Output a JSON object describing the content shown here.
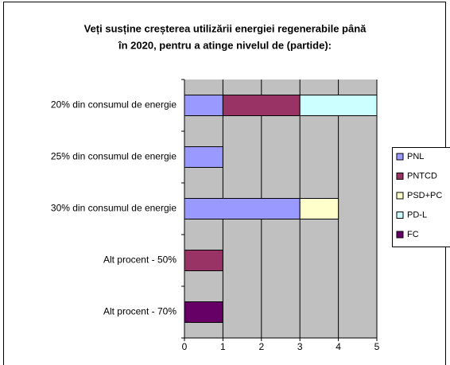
{
  "chart_data": {
    "type": "stacked_bar_horizontal",
    "title": [
      "Veți susține creșterea utilizării energiei regenerabile până",
      "în 2020, pentru a atinge nivelul de (partide):"
    ],
    "categories": [
      "20% din consumul de energie",
      "25% din consumul de energie",
      "30% din consumul de energie",
      "Alt procent - 50%",
      "Alt procent - 70%"
    ],
    "series": [
      {
        "name": "PNL",
        "color": "#9999ff",
        "values": [
          1,
          1,
          3,
          0,
          0
        ]
      },
      {
        "name": "PNTCD",
        "color": "#993366",
        "values": [
          2,
          0,
          0,
          1,
          0
        ]
      },
      {
        "name": "PSD+PC",
        "color": "#ffffcc",
        "values": [
          0,
          0,
          1,
          0,
          0
        ]
      },
      {
        "name": "PD-L",
        "color": "#ccffff",
        "values": [
          2,
          0,
          0,
          0,
          0
        ]
      },
      {
        "name": "FC",
        "color": "#660066",
        "values": [
          0,
          0,
          0,
          0,
          1
        ]
      }
    ],
    "xlim": [
      0,
      5
    ],
    "xticks": [
      0,
      1,
      2,
      3,
      4,
      5
    ],
    "grid": true,
    "legend": "right"
  }
}
